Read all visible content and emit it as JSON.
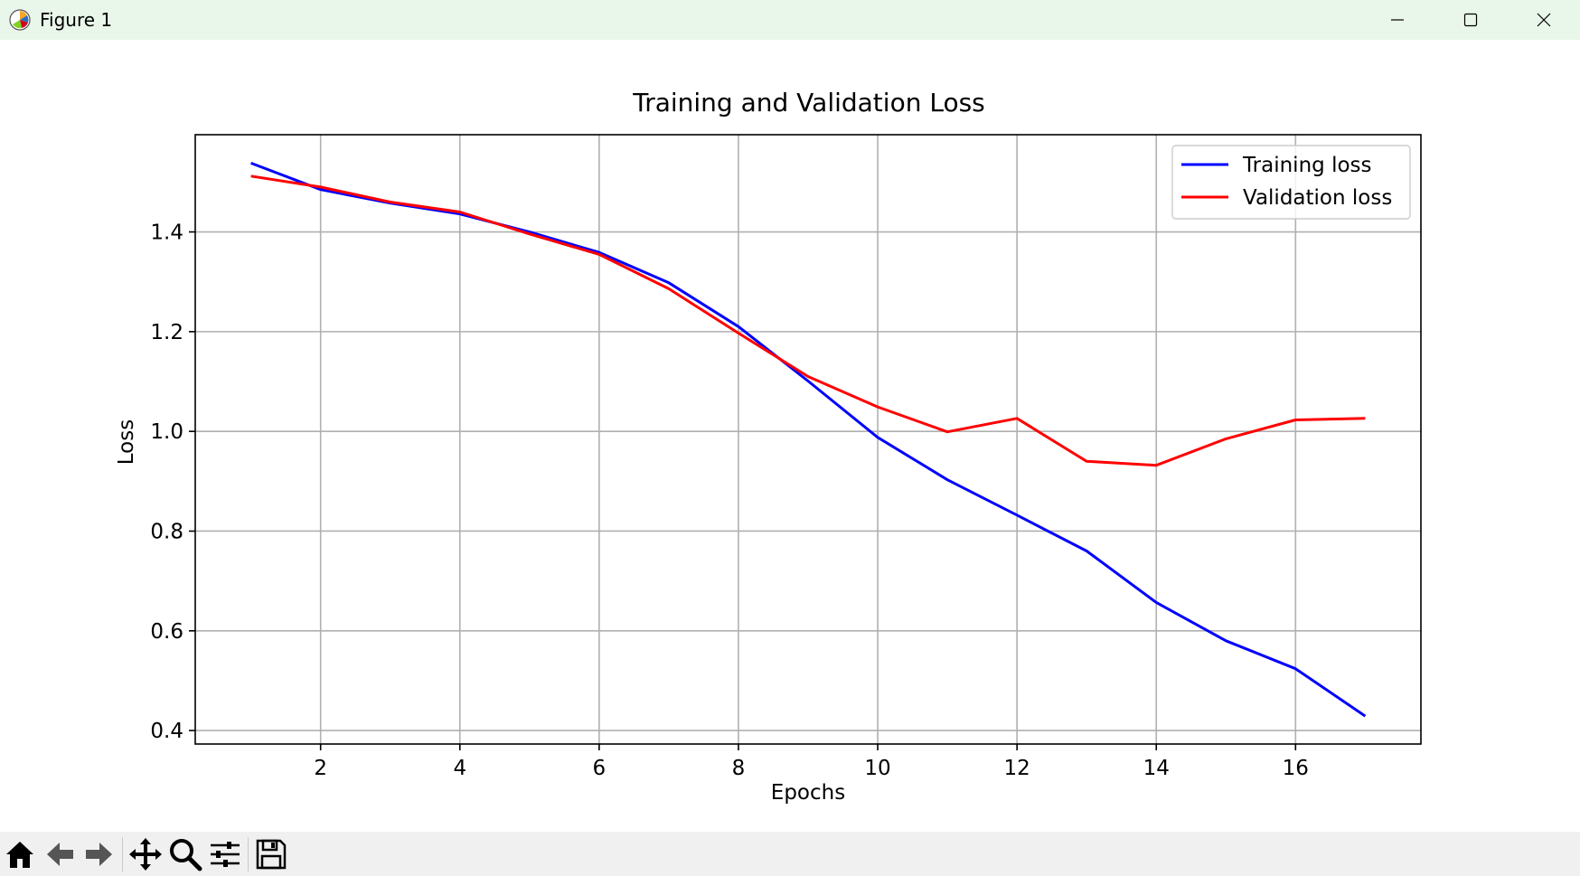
{
  "window": {
    "title": "Figure 1",
    "app_icon": "matplotlib-icon",
    "controls": [
      "minimize-icon",
      "maximize-icon",
      "close-icon"
    ]
  },
  "toolbar": {
    "tools": [
      "home-icon",
      "back-arrow-icon",
      "forward-arrow-icon",
      "pan-icon",
      "zoom-icon",
      "configure-subplots-icon",
      "save-icon"
    ]
  },
  "chart_data": {
    "type": "line",
    "title": "Training and Validation Loss",
    "xlabel": "Epochs",
    "ylabel": "Loss",
    "xlim": [
      0.2,
      17.8
    ],
    "ylim": [
      0.373,
      1.595
    ],
    "xticks": [
      2,
      4,
      6,
      8,
      10,
      12,
      14,
      16
    ],
    "yticks": [
      0.4,
      0.6,
      0.8,
      1.0,
      1.2,
      1.4
    ],
    "grid": true,
    "legend_position": "upper right",
    "x": [
      1,
      2,
      3,
      4,
      5,
      6,
      7,
      8,
      9,
      10,
      11,
      12,
      13,
      14,
      15,
      16,
      17
    ],
    "series": [
      {
        "name": "Training loss",
        "color": "#0000ff",
        "values": [
          1.538,
          1.485,
          1.458,
          1.436,
          1.4,
          1.359,
          1.298,
          1.21,
          1.101,
          0.988,
          0.903,
          0.832,
          0.76,
          0.657,
          0.58,
          0.524,
          0.429
        ]
      },
      {
        "name": "Validation loss",
        "color": "#ff0000",
        "values": [
          1.512,
          1.49,
          1.46,
          1.44,
          1.396,
          1.355,
          1.286,
          1.197,
          1.11,
          1.049,
          0.999,
          1.026,
          0.94,
          0.932,
          0.985,
          1.023,
          1.026
        ]
      }
    ]
  }
}
